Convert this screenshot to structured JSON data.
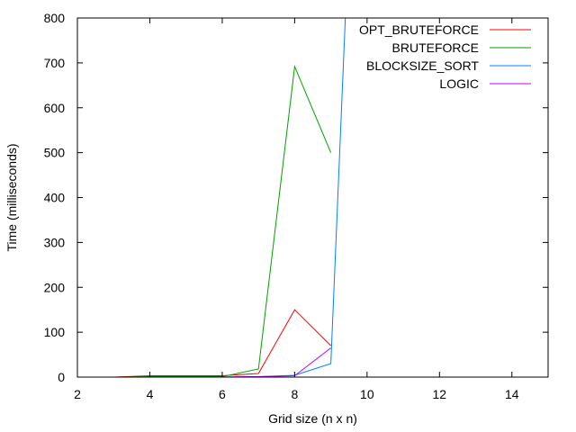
{
  "chart_data": {
    "type": "line",
    "title": "",
    "xlabel": "Grid size (n x n)",
    "ylabel": "Time (milliseconds)",
    "xlim": [
      2,
      15
    ],
    "ylim": [
      0,
      800
    ],
    "xticks": [
      2,
      4,
      6,
      8,
      10,
      12,
      14
    ],
    "yticks": [
      0,
      100,
      200,
      300,
      400,
      500,
      600,
      700,
      800
    ],
    "legend_position": "top-right",
    "grid": false,
    "series": [
      {
        "name": "OPT_BRUTEFORCE",
        "color": "#ff0000",
        "points": [
          [
            2,
            0
          ],
          [
            3,
            0
          ],
          [
            4,
            3
          ],
          [
            5,
            3
          ],
          [
            6,
            3
          ],
          [
            7,
            8
          ],
          [
            8,
            150
          ],
          [
            9,
            70
          ]
        ]
      },
      {
        "name": "BRUTEFORCE",
        "color": "#00a000",
        "points": [
          [
            2,
            0
          ],
          [
            3,
            0
          ],
          [
            4,
            1
          ],
          [
            5,
            1
          ],
          [
            6,
            1
          ],
          [
            7,
            18
          ],
          [
            8,
            692
          ],
          [
            9,
            500
          ]
        ]
      },
      {
        "name": "BLOCKSIZE_SORT",
        "color": "#0080ff",
        "points": [
          [
            2,
            0
          ],
          [
            3,
            0
          ],
          [
            4,
            0
          ],
          [
            5,
            0
          ],
          [
            6,
            0
          ],
          [
            7,
            1
          ],
          [
            8,
            4
          ],
          [
            9,
            30
          ],
          [
            9.4,
            800
          ]
        ]
      },
      {
        "name": "LOGIC",
        "color": "#c000ff",
        "points": [
          [
            2,
            0
          ],
          [
            3,
            0
          ],
          [
            4,
            0
          ],
          [
            5,
            0
          ],
          [
            6,
            0
          ],
          [
            7,
            1
          ],
          [
            8,
            3
          ],
          [
            9,
            65
          ]
        ]
      }
    ]
  }
}
